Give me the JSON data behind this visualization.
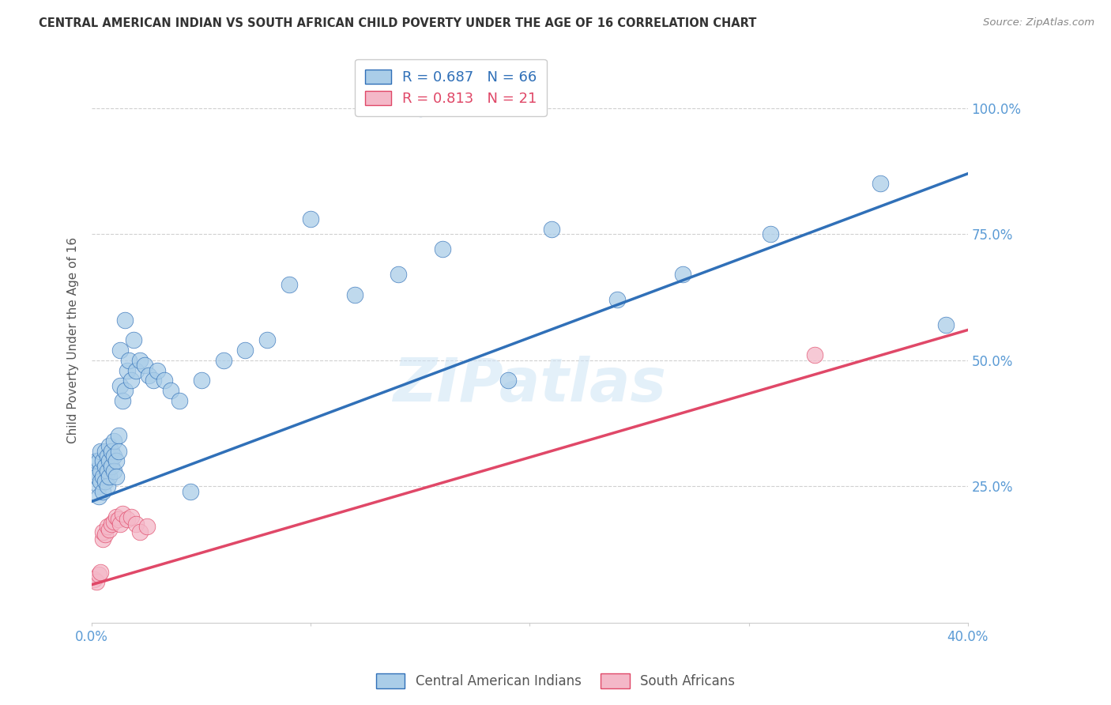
{
  "title": "CENTRAL AMERICAN INDIAN VS SOUTH AFRICAN CHILD POVERTY UNDER THE AGE OF 16 CORRELATION CHART",
  "source": "Source: ZipAtlas.com",
  "ylabel": "Child Poverty Under the Age of 16",
  "ytick_labels": [
    "100.0%",
    "75.0%",
    "50.0%",
    "25.0%"
  ],
  "ytick_values": [
    1.0,
    0.75,
    0.5,
    0.25
  ],
  "xlim": [
    0.0,
    0.4
  ],
  "ylim": [
    -0.02,
    1.1
  ],
  "blue_R": "0.687",
  "blue_N": "66",
  "pink_R": "0.813",
  "pink_N": "21",
  "legend_label_blue": "Central American Indians",
  "legend_label_pink": "South Africans",
  "blue_color": "#aacde8",
  "pink_color": "#f4b8c8",
  "blue_line_color": "#3070b8",
  "pink_line_color": "#e04868",
  "watermark": "ZIPatlas",
  "blue_line_x0": 0.0,
  "blue_line_y0": 0.22,
  "blue_line_x1": 0.4,
  "blue_line_y1": 0.87,
  "pink_line_x0": 0.0,
  "pink_line_y0": 0.055,
  "pink_line_x1": 0.4,
  "pink_line_y1": 0.56,
  "blue_scatter_x": [
    0.001,
    0.002,
    0.002,
    0.003,
    0.003,
    0.003,
    0.004,
    0.004,
    0.004,
    0.005,
    0.005,
    0.005,
    0.006,
    0.006,
    0.006,
    0.007,
    0.007,
    0.007,
    0.008,
    0.008,
    0.008,
    0.009,
    0.009,
    0.01,
    0.01,
    0.01,
    0.011,
    0.011,
    0.012,
    0.012,
    0.013,
    0.013,
    0.014,
    0.015,
    0.015,
    0.016,
    0.017,
    0.018,
    0.019,
    0.02,
    0.022,
    0.024,
    0.026,
    0.028,
    0.03,
    0.033,
    0.036,
    0.04,
    0.045,
    0.05,
    0.06,
    0.07,
    0.08,
    0.09,
    0.1,
    0.12,
    0.14,
    0.16,
    0.19,
    0.21,
    0.24,
    0.27,
    0.31,
    0.36,
    0.39,
    0.15
  ],
  "blue_scatter_y": [
    0.28,
    0.3,
    0.27,
    0.25,
    0.23,
    0.3,
    0.32,
    0.28,
    0.26,
    0.24,
    0.3,
    0.27,
    0.29,
    0.26,
    0.32,
    0.28,
    0.31,
    0.25,
    0.3,
    0.27,
    0.33,
    0.29,
    0.32,
    0.31,
    0.28,
    0.34,
    0.3,
    0.27,
    0.35,
    0.32,
    0.45,
    0.52,
    0.42,
    0.44,
    0.58,
    0.48,
    0.5,
    0.46,
    0.54,
    0.48,
    0.5,
    0.49,
    0.47,
    0.46,
    0.48,
    0.46,
    0.44,
    0.42,
    0.24,
    0.46,
    0.5,
    0.52,
    0.54,
    0.65,
    0.78,
    0.63,
    0.67,
    0.72,
    0.46,
    0.76,
    0.62,
    0.67,
    0.75,
    0.85,
    0.57,
    1.0
  ],
  "pink_scatter_x": [
    0.001,
    0.002,
    0.003,
    0.004,
    0.005,
    0.005,
    0.006,
    0.007,
    0.008,
    0.009,
    0.01,
    0.011,
    0.012,
    0.013,
    0.014,
    0.016,
    0.018,
    0.02,
    0.022,
    0.025,
    0.33
  ],
  "pink_scatter_y": [
    0.065,
    0.06,
    0.075,
    0.08,
    0.145,
    0.16,
    0.155,
    0.17,
    0.165,
    0.175,
    0.18,
    0.19,
    0.185,
    0.175,
    0.195,
    0.185,
    0.19,
    0.175,
    0.16,
    0.17,
    0.51
  ]
}
